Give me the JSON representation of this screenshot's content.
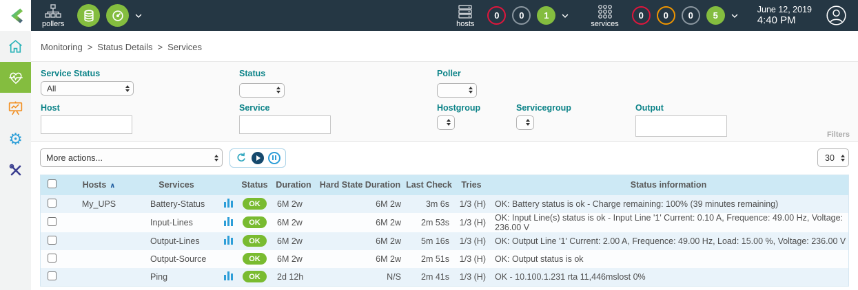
{
  "topbar": {
    "pollers": {
      "label": "pollers"
    },
    "hosts": {
      "label": "hosts",
      "badges": [
        {
          "value": "0",
          "style": "ring-red"
        },
        {
          "value": "0",
          "style": "ring-gray"
        },
        {
          "value": "1",
          "style": "fill-green"
        }
      ]
    },
    "services": {
      "label": "services",
      "badges": [
        {
          "value": "0",
          "style": "ring-red"
        },
        {
          "value": "0",
          "style": "ring-orange"
        },
        {
          "value": "0",
          "style": "ring-gray"
        },
        {
          "value": "5",
          "style": "fill-green"
        }
      ]
    },
    "clock": {
      "date": "June 12, 2019",
      "time": "4:40 PM"
    }
  },
  "sidebar": {
    "items": [
      {
        "name": "home",
        "icon": "home-icon",
        "active": false
      },
      {
        "name": "monitoring",
        "icon": "heartbeat-icon",
        "active": true
      },
      {
        "name": "reporting",
        "icon": "presentation-chart-icon",
        "active": false
      },
      {
        "name": "configuration",
        "icon": "gear-icon",
        "active": false
      },
      {
        "name": "administration",
        "icon": "tools-icon",
        "active": false
      }
    ]
  },
  "breadcrumb": {
    "items": [
      "Monitoring",
      "Status Details",
      "Services"
    ],
    "separator": ">"
  },
  "filters": {
    "service_status": {
      "label": "Service Status",
      "value": "All"
    },
    "status": {
      "label": "Status",
      "value": ""
    },
    "poller": {
      "label": "Poller",
      "value": ""
    },
    "host": {
      "label": "Host",
      "value": ""
    },
    "service": {
      "label": "Service",
      "value": ""
    },
    "hostgroup": {
      "label": "Hostgroup",
      "value": ""
    },
    "servicegroup": {
      "label": "Servicegroup",
      "value": ""
    },
    "output": {
      "label": "Output",
      "value": ""
    },
    "panel_label": "Filters"
  },
  "toolbar": {
    "more_actions": "More actions...",
    "page_size": "30"
  },
  "table": {
    "sort_indicator": "∧",
    "columns": {
      "hosts": "Hosts",
      "services": "Services",
      "status": "Status",
      "duration": "Duration",
      "hard_state_duration": "Hard State Duration",
      "last_check": "Last Check",
      "tries": "Tries",
      "status_information": "Status information"
    },
    "rows": [
      {
        "host": "My_UPS",
        "service": "Battery-Status",
        "graph": true,
        "status": "OK",
        "duration": "6M 2w",
        "hard_state_duration": "6M 2w",
        "last_check": "3m 6s",
        "tries": "1/3 (H)",
        "info": "OK: Battery status is ok - Charge remaining: 100% (39 minutes remaining)"
      },
      {
        "host": "",
        "service": "Input-Lines",
        "graph": true,
        "status": "OK",
        "duration": "6M 2w",
        "hard_state_duration": "6M 2w",
        "last_check": "2m 53s",
        "tries": "1/3 (H)",
        "info": "OK: Input Line(s) status is ok - Input Line '1' Current: 0.10 A, Frequence: 49.00 Hz, Voltage: 236.00 V"
      },
      {
        "host": "",
        "service": "Output-Lines",
        "graph": true,
        "status": "OK",
        "duration": "6M 2w",
        "hard_state_duration": "6M 2w",
        "last_check": "5m 16s",
        "tries": "1/3 (H)",
        "info": "OK: Output Line '1' Current: 2.00 A, Frequence: 49.00 Hz, Load: 15.00 %, Voltage: 236.00 V"
      },
      {
        "host": "",
        "service": "Output-Source",
        "graph": false,
        "status": "OK",
        "duration": "6M 2w",
        "hard_state_duration": "6M 2w",
        "last_check": "2m 51s",
        "tries": "1/3 (H)",
        "info": "OK: Output status is ok"
      },
      {
        "host": "",
        "service": "Ping",
        "graph": true,
        "status": "OK",
        "duration": "2d 12h",
        "hard_state_duration": "N/S",
        "last_check": "2m 41s",
        "tries": "1/3 (H)",
        "info": "OK - 10.100.1.231 rta 11,446mslost 0%"
      }
    ]
  },
  "colors": {
    "topbar_bg": "#253744",
    "brand_green": "#84bd3f",
    "status_ok_green": "#79bb30",
    "critical_red": "#e0163c",
    "warning_orange": "#ef9500",
    "teal_label": "#0c8388",
    "table_header_blue": "#cde9f5",
    "graph_bar_blue": "#2d9ed8"
  }
}
